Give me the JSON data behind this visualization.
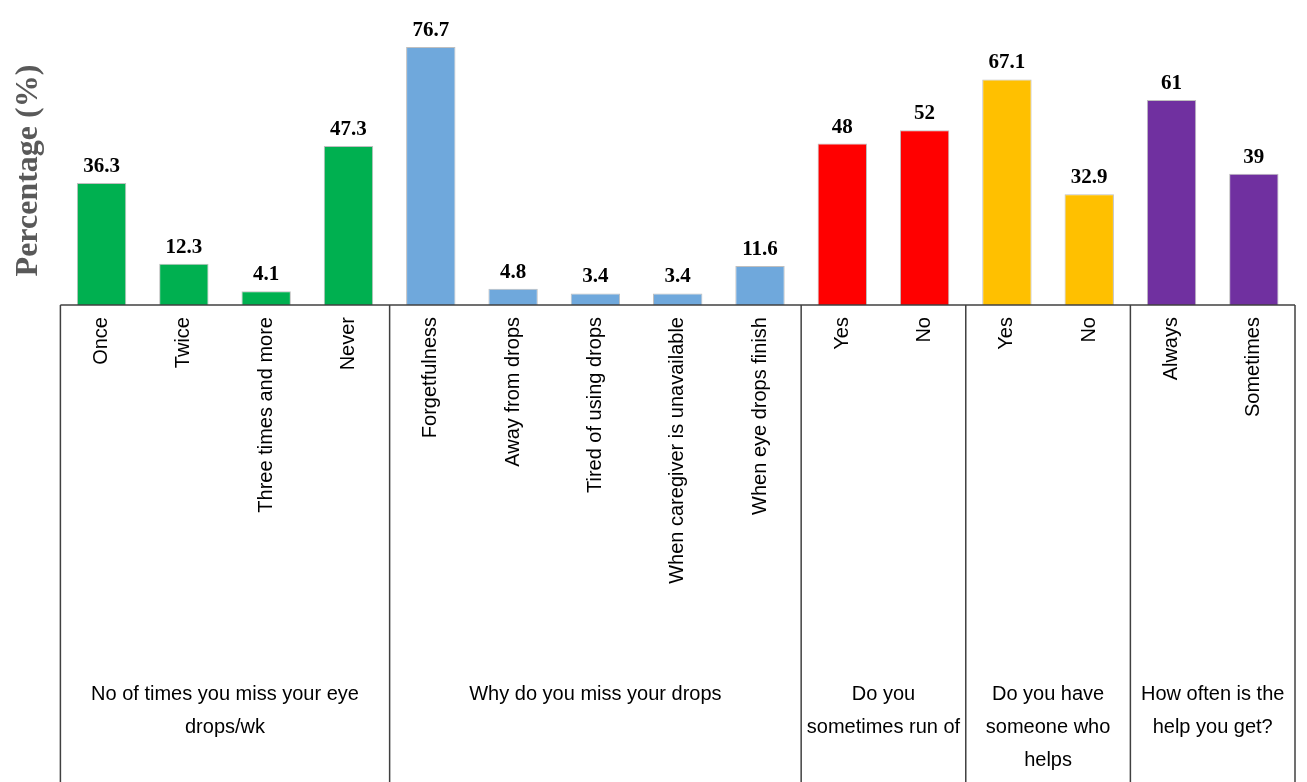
{
  "chart_data": {
    "type": "bar",
    "ylabel": "Percentage (%)",
    "categories": [
      "Once",
      "Twice",
      "Three times and more",
      "Never",
      "Forgetfulness",
      "Away from drops",
      "Tired of using drops",
      "When caregiver is unavailable",
      "When eye drops finish",
      "Yes",
      "No",
      "Yes",
      "No",
      "Always",
      "Sometimes"
    ],
    "values": [
      36.3,
      12.3,
      4.1,
      47.3,
      76.7,
      4.8,
      3.4,
      3.4,
      11.6,
      48,
      52,
      67.1,
      32.9,
      61,
      39
    ],
    "colors": [
      "#00b050",
      "#00b050",
      "#00b050",
      "#00b050",
      "#6fa8dc",
      "#6fa8dc",
      "#6fa8dc",
      "#6fa8dc",
      "#6fa8dc",
      "#ff0000",
      "#ff0000",
      "#ffc000",
      "#ffc000",
      "#7030a0",
      "#7030a0"
    ],
    "data_labels": true,
    "grid": false,
    "legend": false,
    "annotations": [
      "No of times you miss your eye drops/wk",
      "Why do you miss your drops",
      "Do you sometimes run of",
      "Do you have someone who helps",
      "How often is the help you get?"
    ]
  }
}
